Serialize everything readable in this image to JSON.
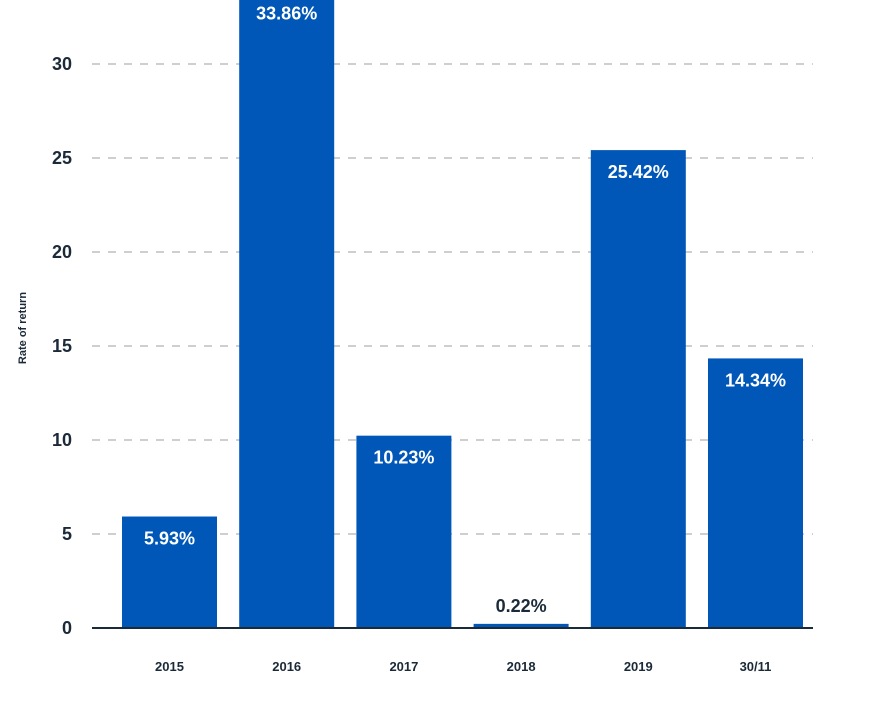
{
  "chart_data": {
    "type": "bar",
    "title": "",
    "xlabel": "",
    "ylabel": "Rate of return",
    "categories": [
      "2015",
      "2016",
      "2017",
      "2018",
      "2019",
      "30/11"
    ],
    "values": [
      5.93,
      33.86,
      10.23,
      0.22,
      25.42,
      14.34
    ],
    "value_labels": [
      "5.93%",
      "33.86%",
      "10.23%",
      "0.22%",
      "25.42%",
      "14.34%"
    ],
    "yticks": [
      "0",
      "5",
      "10",
      "15",
      "20",
      "25",
      "30"
    ],
    "ytick_values": [
      0,
      5,
      10,
      15,
      20,
      25,
      30
    ],
    "ylim": [
      0,
      32.5
    ],
    "grid": true,
    "colors": {
      "bar": "#0057b8",
      "grid": "#cfcfcf",
      "axis": "#1b2a38"
    }
  }
}
